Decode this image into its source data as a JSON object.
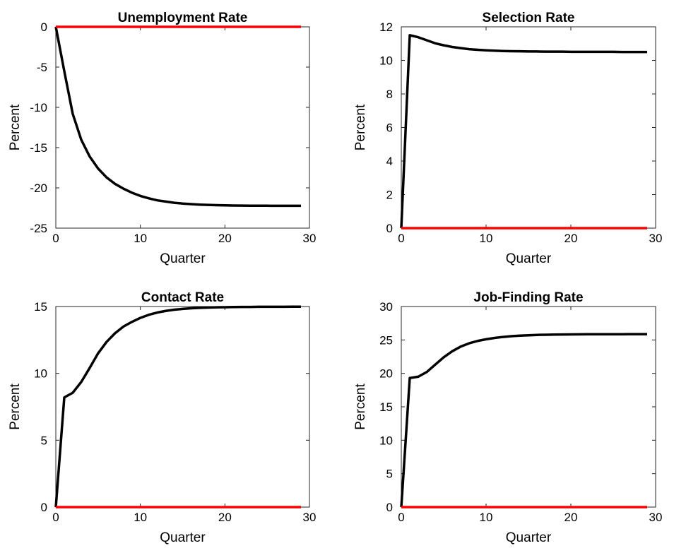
{
  "chart_data": [
    {
      "type": "line",
      "title": "Unemployment Rate",
      "xlabel": "Quarter",
      "ylabel": "Percent",
      "xlim": [
        0,
        30
      ],
      "ylim": [
        -25,
        0
      ],
      "xticks": [
        0,
        10,
        20,
        30
      ],
      "yticks": [
        -25,
        -20,
        -15,
        -10,
        -5,
        0
      ],
      "grid": false,
      "series": [
        {
          "color": "#000000",
          "x": [
            0,
            1,
            2,
            3,
            4,
            5,
            6,
            7,
            8,
            9,
            10,
            11,
            12,
            13,
            14,
            15,
            16,
            17,
            18,
            19,
            20,
            21,
            22,
            23,
            24,
            25,
            26,
            27,
            28,
            29
          ],
          "y": [
            0,
            -5.5,
            -10.8,
            -14.0,
            -16.1,
            -17.6,
            -18.7,
            -19.5,
            -20.1,
            -20.6,
            -21.0,
            -21.3,
            -21.55,
            -21.7,
            -21.85,
            -21.95,
            -22.02,
            -22.08,
            -22.12,
            -22.15,
            -22.17,
            -22.19,
            -22.2,
            -22.21,
            -22.22,
            -22.22,
            -22.23,
            -22.23,
            -22.23,
            -22.23
          ]
        },
        {
          "color": "#ff0000",
          "x": [
            0,
            29
          ],
          "y": [
            0,
            0
          ]
        }
      ]
    },
    {
      "type": "line",
      "title": "Selection Rate",
      "xlabel": "Quarter",
      "ylabel": "Percent",
      "xlim": [
        0,
        30
      ],
      "ylim": [
        0,
        12
      ],
      "xticks": [
        0,
        10,
        20,
        30
      ],
      "yticks": [
        0,
        2,
        4,
        6,
        8,
        10,
        12
      ],
      "grid": false,
      "series": [
        {
          "color": "#000000",
          "x": [
            0,
            1,
            2,
            3,
            4,
            5,
            6,
            7,
            8,
            9,
            10,
            11,
            12,
            13,
            14,
            15,
            16,
            17,
            18,
            19,
            20,
            21,
            22,
            23,
            24,
            25,
            26,
            27,
            28,
            29
          ],
          "y": [
            0,
            11.5,
            11.38,
            11.2,
            11.02,
            10.9,
            10.8,
            10.73,
            10.67,
            10.63,
            10.6,
            10.58,
            10.56,
            10.55,
            10.54,
            10.53,
            10.53,
            10.52,
            10.52,
            10.52,
            10.51,
            10.51,
            10.51,
            10.51,
            10.51,
            10.51,
            10.5,
            10.5,
            10.5,
            10.5
          ]
        },
        {
          "color": "#ff0000",
          "x": [
            0,
            29
          ],
          "y": [
            0,
            0
          ]
        }
      ]
    },
    {
      "type": "line",
      "title": "Contact Rate",
      "xlabel": "Quarter",
      "ylabel": "Percent",
      "xlim": [
        0,
        30
      ],
      "ylim": [
        0,
        15
      ],
      "xticks": [
        0,
        10,
        20,
        30
      ],
      "yticks": [
        0,
        5,
        10,
        15
      ],
      "grid": false,
      "series": [
        {
          "color": "#000000",
          "x": [
            0,
            1,
            2,
            3,
            4,
            5,
            6,
            7,
            8,
            9,
            10,
            11,
            12,
            13,
            14,
            15,
            16,
            17,
            18,
            19,
            20,
            21,
            22,
            23,
            24,
            25,
            26,
            27,
            28,
            29
          ],
          "y": [
            0,
            8.2,
            8.55,
            9.35,
            10.4,
            11.5,
            12.35,
            13.0,
            13.5,
            13.85,
            14.15,
            14.38,
            14.55,
            14.67,
            14.76,
            14.82,
            14.87,
            14.9,
            14.92,
            14.94,
            14.95,
            14.96,
            14.97,
            14.97,
            14.98,
            14.98,
            14.98,
            14.98,
            14.99,
            14.99
          ]
        },
        {
          "color": "#ff0000",
          "x": [
            0,
            29
          ],
          "y": [
            0,
            0
          ]
        }
      ]
    },
    {
      "type": "line",
      "title": "Job-Finding Rate",
      "xlabel": "Quarter",
      "ylabel": "Percent",
      "xlim": [
        0,
        30
      ],
      "ylim": [
        0,
        30
      ],
      "xticks": [
        0,
        10,
        20,
        30
      ],
      "yticks": [
        0,
        5,
        10,
        15,
        20,
        25,
        30
      ],
      "grid": false,
      "series": [
        {
          "color": "#000000",
          "x": [
            0,
            1,
            2,
            3,
            4,
            5,
            6,
            7,
            8,
            9,
            10,
            11,
            12,
            13,
            14,
            15,
            16,
            17,
            18,
            19,
            20,
            21,
            22,
            23,
            24,
            25,
            26,
            27,
            28,
            29
          ],
          "y": [
            0,
            19.3,
            19.5,
            20.2,
            21.3,
            22.4,
            23.3,
            24.0,
            24.5,
            24.85,
            25.1,
            25.3,
            25.45,
            25.56,
            25.64,
            25.7,
            25.75,
            25.78,
            25.8,
            25.82,
            25.83,
            25.84,
            25.85,
            25.85,
            25.86,
            25.86,
            25.86,
            25.87,
            25.87,
            25.87
          ]
        },
        {
          "color": "#ff0000",
          "x": [
            0,
            29
          ],
          "y": [
            0,
            0
          ]
        }
      ]
    }
  ]
}
